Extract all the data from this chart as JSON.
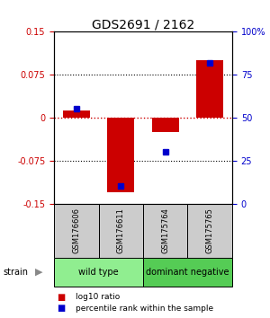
{
  "title": "GDS2691 / 2162",
  "samples": [
    "GSM176606",
    "GSM176611",
    "GSM175764",
    "GSM175765"
  ],
  "log10_ratio": [
    0.012,
    -0.13,
    -0.025,
    0.1
  ],
  "percentile_rank": [
    55,
    10,
    30,
    82
  ],
  "ylim_left": [
    -0.15,
    0.15
  ],
  "ylim_right": [
    0,
    100
  ],
  "yticks_left": [
    -0.15,
    -0.075,
    0,
    0.075,
    0.15
  ],
  "ytick_labels_left": [
    "-0.15",
    "-0.075",
    "0",
    "0.075",
    "0.15"
  ],
  "yticks_right": [
    0,
    25,
    50,
    75,
    100
  ],
  "ytick_labels_right": [
    "0",
    "25",
    "50",
    "75",
    "100%"
  ],
  "groups": [
    {
      "label": "wild type",
      "samples": [
        0,
        1
      ],
      "color": "#90ee90"
    },
    {
      "label": "dominant negative",
      "samples": [
        2,
        3
      ],
      "color": "#55cc55"
    }
  ],
  "bar_color": "#cc0000",
  "point_color": "#0000cc",
  "background_color": "#ffffff",
  "title_fontsize": 10,
  "axis_label_color_left": "#cc0000",
  "axis_label_color_right": "#0000cc",
  "grid_color": "#000000",
  "zero_line_color": "#cc0000",
  "sample_box_color": "#cccccc",
  "strain_label": "strain",
  "legend_red_label": "log10 ratio",
  "legend_blue_label": "percentile rank within the sample",
  "bar_width": 0.6
}
